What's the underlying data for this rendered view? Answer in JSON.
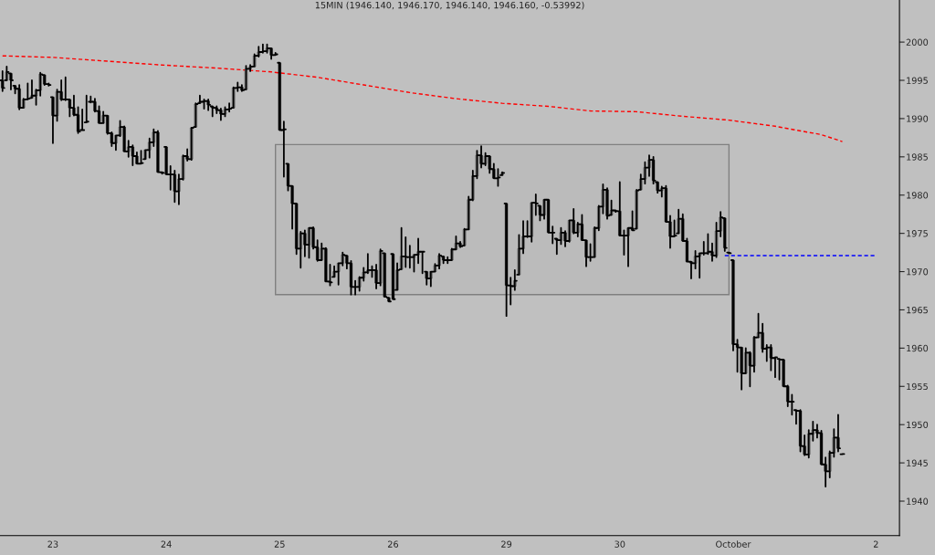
{
  "chart_data": {
    "type": "candlestick",
    "title": "15MIN (1946.140, 1946.170, 1946.140, 1946.160, -0.53992)",
    "color": "#000000",
    "categories": [
      null,
      null,
      null,
      null,
      null,
      null,
      null,
      null,
      null,
      null,
      null,
      null,
      "23",
      null,
      null,
      null,
      null,
      null,
      null,
      null,
      null,
      null,
      null,
      null,
      null,
      null,
      null,
      null,
      null,
      null,
      null,
      null,
      null,
      null,
      null,
      null,
      null,
      null,
      null,
      "24",
      null,
      null,
      null,
      null,
      null,
      null,
      null,
      null,
      null,
      null,
      null,
      null,
      null,
      null,
      null,
      null,
      null,
      null,
      null,
      null,
      null,
      null,
      null,
      null,
      null,
      null,
      "25",
      null,
      null,
      null,
      null,
      null,
      null,
      null,
      null,
      null,
      null,
      null,
      null,
      null,
      null,
      null,
      null,
      null,
      null,
      null,
      null,
      null,
      null,
      null,
      null,
      null,
      null,
      "26",
      null,
      null,
      null,
      null,
      null,
      null,
      null,
      null,
      null,
      null,
      null,
      null,
      null,
      null,
      null,
      null,
      null,
      null,
      null,
      null,
      null,
      null,
      null,
      null,
      null,
      null,
      "29",
      null,
      null,
      null,
      null,
      null,
      null,
      null,
      null,
      null,
      null,
      null,
      null,
      null,
      null,
      null,
      null,
      null,
      null,
      null,
      null,
      null,
      null,
      null,
      null,
      null,
      null,
      "30",
      null,
      null,
      null,
      null,
      null,
      null,
      null,
      null,
      null,
      null,
      null,
      null,
      null,
      null,
      null,
      null,
      null,
      null,
      null,
      null,
      null,
      null,
      null,
      null,
      null,
      null,
      "October",
      null,
      null,
      null,
      null,
      null,
      null,
      null,
      null,
      null,
      null,
      null,
      null,
      null,
      null,
      null,
      null,
      null,
      null,
      null,
      null,
      null,
      null,
      null,
      null,
      null,
      null,
      null,
      null,
      null,
      null,
      null,
      null,
      null,
      "2"
    ],
    "ohlc": [
      [
        1995.0,
        1996.2,
        1993.6,
        1994.0
      ],
      [
        1995.0,
        1996.8,
        1995.0,
        1996.1
      ],
      [
        1995.9,
        1995.9,
        1993.8,
        1995.0
      ],
      [
        1994.3,
        1994.3,
        1993.3,
        1993.9
      ],
      [
        1993.9,
        1994.4,
        1991.2,
        1991.4
      ],
      [
        1991.4,
        1992.6,
        1991.4,
        1992.5
      ],
      [
        1992.5,
        1994.6,
        1992.5,
        1992.6
      ],
      [
        1992.7,
        1995.0,
        1992.7,
        1993.0
      ],
      [
        1993.0,
        1993.8,
        1991.8,
        1993.7
      ],
      [
        1993.7,
        1996.0,
        1993.0,
        1995.8
      ],
      [
        1995.7,
        1995.7,
        1994.4,
        1994.5
      ],
      [
        1994.5,
        1994.6,
        1994.3,
        1994.4
      ],
      [
        1992.8,
        1992.8,
        1986.8,
        1990.4
      ],
      [
        1990.4,
        1993.8,
        1989.7,
        1993.5
      ],
      [
        1993.5,
        1995.0,
        1992.4,
        1992.5
      ],
      [
        1992.5,
        1995.4,
        1992.4,
        1992.5
      ],
      [
        1992.5,
        1992.5,
        1990.3,
        1991.4
      ],
      [
        1991.4,
        1993.0,
        1990.4,
        1990.5
      ],
      [
        1990.5,
        1991.5,
        1988.1,
        1988.3
      ],
      [
        1988.5,
        1991.2,
        1988.5,
        1988.5
      ],
      [
        1989.5,
        1993.0,
        1989.5,
        1989.6
      ],
      [
        1992.2,
        1992.9,
        1992.1,
        1992.2
      ],
      [
        1992.2,
        1992.6,
        1990.9,
        1991.0
      ],
      [
        1991.0,
        1991.6,
        1989.4,
        1989.4
      ],
      [
        1989.4,
        1990.9,
        1989.4,
        1990.4
      ],
      [
        1990.4,
        1990.4,
        1988.0,
        1988.1
      ],
      [
        1988.1,
        1988.2,
        1986.4,
        1986.8
      ],
      [
        1986.8,
        1987.8,
        1985.9,
        1987.8
      ],
      [
        1987.8,
        1989.7,
        1987.7,
        1988.9
      ],
      [
        1988.9,
        1989.0,
        1985.7,
        1985.7
      ],
      [
        1985.7,
        1987.1,
        1985.0,
        1986.3
      ],
      [
        1986.3,
        1986.5,
        1983.9,
        1985.1
      ],
      [
        1985.1,
        1985.6,
        1984.1,
        1984.1
      ],
      [
        1984.1,
        1985.8,
        1984.1,
        1984.2
      ],
      [
        1984.7,
        1985.9,
        1984.7,
        1985.9
      ],
      [
        1985.9,
        1987.4,
        1984.9,
        1986.9
      ],
      [
        1986.9,
        1988.6,
        1986.4,
        1988.2
      ],
      [
        1988.2,
        1988.4,
        1983.0,
        1983.0
      ],
      [
        1983.0,
        1983.0,
        1982.8,
        1982.9
      ],
      [
        1986.3,
        1986.3,
        1982.7,
        1982.7
      ],
      [
        1982.7,
        1983.8,
        1980.7,
        1982.7
      ],
      [
        1982.7,
        1983.2,
        1979.1,
        1980.5
      ],
      [
        1980.5,
        1982.7,
        1978.8,
        1982.1
      ],
      [
        1982.1,
        1985.2,
        1982.0,
        1985.1
      ],
      [
        1985.1,
        1986.0,
        1984.5,
        1984.7
      ],
      [
        1984.7,
        1988.8,
        1984.6,
        1988.8
      ],
      [
        1988.9,
        1992.0,
        1988.9,
        1991.9
      ],
      [
        1992.0,
        1993.0,
        1992.0,
        1992.2
      ],
      [
        1992.2,
        1992.5,
        1991.3,
        1992.3
      ],
      [
        1992.3,
        1992.5,
        1991.1,
        1991.8
      ],
      [
        1991.6,
        1991.6,
        1990.3,
        1991.4
      ],
      [
        1991.4,
        1991.6,
        1990.7,
        1991.1
      ],
      [
        1991.1,
        1991.3,
        1989.8,
        1990.6
      ],
      [
        1990.6,
        1991.5,
        1990.3,
        1991.2
      ],
      [
        1991.2,
        1992.0,
        1990.9,
        1991.3
      ],
      [
        1991.4,
        1994.1,
        1991.4,
        1994.0
      ],
      [
        1994.0,
        1994.7,
        1993.6,
        1994.1
      ],
      [
        1994.1,
        1994.4,
        1993.6,
        1993.7
      ],
      [
        1993.8,
        1996.9,
        1993.8,
        1996.5
      ],
      [
        1996.5,
        1997.0,
        1996.2,
        1996.8
      ],
      [
        1996.8,
        1998.4,
        1996.8,
        1998.2
      ],
      [
        1998.2,
        1999.4,
        1998.1,
        1998.7
      ],
      [
        1998.7,
        1999.7,
        1998.6,
        1998.8
      ],
      [
        1998.8,
        1999.7,
        1998.6,
        1999.2
      ],
      [
        1999.2,
        1999.2,
        1997.8,
        1998.3
      ],
      [
        1998.3,
        1998.6,
        1998.3,
        1998.4
      ],
      [
        1997.3,
        1997.3,
        1988.5,
        1988.5
      ],
      [
        1988.5,
        1989.6,
        1982.4,
        1988.6
      ],
      [
        1984.1,
        1984.1,
        1980.6,
        1981.2
      ],
      [
        1981.2,
        1981.2,
        1975.6,
        1978.9
      ],
      [
        1978.9,
        1978.9,
        1972.3,
        1973.0
      ],
      [
        1973.0,
        1975.2,
        1970.5,
        1975.0
      ],
      [
        1975.0,
        1975.4,
        1972.0,
        1973.5
      ],
      [
        1973.5,
        1975.7,
        1971.8,
        1975.7
      ],
      [
        1975.7,
        1975.8,
        1973.0,
        1973.2
      ],
      [
        1973.2,
        1974.1,
        1971.4,
        1971.5
      ],
      [
        1971.5,
        1973.7,
        1971.5,
        1973.0
      ],
      [
        1973.0,
        1973.1,
        1968.7,
        1968.7
      ],
      [
        1968.7,
        1970.9,
        1968.2,
        1968.6
      ],
      [
        1969.3,
        1970.7,
        1969.3,
        1970.0
      ],
      [
        1970.0,
        1971.1,
        1968.3,
        1971.1
      ],
      [
        1971.1,
        1972.5,
        1970.8,
        1972.2
      ],
      [
        1972.1,
        1972.1,
        1970.4,
        1971.1
      ],
      [
        1971.1,
        1971.4,
        1967.0,
        1968.0
      ],
      [
        1968.0,
        1968.8,
        1967.0,
        1968.0
      ],
      [
        1968.0,
        1969.3,
        1967.5,
        1969.2
      ],
      [
        1969.2,
        1970.5,
        1968.8,
        1969.9
      ],
      [
        1969.9,
        1972.3,
        1969.8,
        1970.2
      ],
      [
        1970.2,
        1970.7,
        1969.3,
        1970.2
      ],
      [
        1970.2,
        1970.9,
        1967.8,
        1968.5
      ],
      [
        1968.5,
        1972.9,
        1968.2,
        1972.7
      ],
      [
        1972.4,
        1972.4,
        1966.7,
        1966.7
      ],
      [
        1966.6,
        1966.6,
        1966.1,
        1966.1
      ],
      [
        1972.3,
        1972.3,
        1966.4,
        1966.4
      ],
      [
        1967.6,
        1971.1,
        1967.6,
        1970.2
      ],
      [
        1970.3,
        1975.7,
        1970.3,
        1972.0
      ],
      [
        1972.0,
        1974.5,
        1970.6,
        1971.9
      ],
      [
        1971.9,
        1973.4,
        1970.5,
        1971.9
      ],
      [
        1971.9,
        1972.2,
        1970.0,
        1972.2
      ],
      [
        1972.2,
        1974.3,
        1971.1,
        1972.6
      ],
      [
        1972.6,
        1972.6,
        1969.8,
        1972.6
      ],
      [
        1970.0,
        1970.0,
        1968.3,
        1969.1
      ],
      [
        1969.1,
        1970.0,
        1968.1,
        1970.0
      ],
      [
        1970.0,
        1971.0,
        1970.0,
        1970.8
      ],
      [
        1970.8,
        1972.3,
        1970.4,
        1972.1
      ],
      [
        1972.0,
        1972.0,
        1971.1,
        1971.5
      ],
      [
        1971.5,
        1971.9,
        1971.1,
        1971.5
      ],
      [
        1971.5,
        1973.0,
        1971.5,
        1972.9
      ],
      [
        1972.9,
        1974.6,
        1972.9,
        1973.7
      ],
      [
        1973.7,
        1973.9,
        1973.2,
        1973.3
      ],
      [
        1973.4,
        1975.6,
        1973.4,
        1975.5
      ],
      [
        1975.5,
        1979.8,
        1975.5,
        1979.4
      ],
      [
        1979.4,
        1983.2,
        1979.3,
        1982.5
      ],
      [
        1982.5,
        1985.8,
        1982.2,
        1985.2
      ],
      [
        1985.2,
        1986.4,
        1983.6,
        1984.1
      ],
      [
        1984.1,
        1985.5,
        1983.9,
        1985.1
      ],
      [
        1985.1,
        1985.1,
        1982.9,
        1983.4
      ],
      [
        1983.4,
        1984.1,
        1982.2,
        1982.2
      ],
      [
        1982.2,
        1983.4,
        1981.2,
        1982.3
      ],
      [
        1982.6,
        1983.0,
        1982.6,
        1982.9
      ],
      [
        1978.9,
        1978.9,
        1964.2,
        1968.2
      ],
      [
        1968.2,
        1969.2,
        1965.7,
        1968.1
      ],
      [
        1968.1,
        1970.2,
        1967.6,
        1968.8
      ],
      [
        1969.6,
        1974.8,
        1969.6,
        1973.0
      ],
      [
        1973.0,
        1976.6,
        1972.4,
        1974.6
      ],
      [
        1974.6,
        1976.6,
        1974.5,
        1974.6
      ],
      [
        1974.6,
        1979.0,
        1973.9,
        1979.0
      ],
      [
        1979.0,
        1980.1,
        1977.4,
        1978.9
      ],
      [
        1978.6,
        1978.6,
        1976.7,
        1977.4
      ],
      [
        1977.4,
        1979.4,
        1976.9,
        1979.4
      ],
      [
        1979.4,
        1979.4,
        1975.1,
        1975.1
      ],
      [
        1975.1,
        1975.9,
        1973.7,
        1975.1
      ],
      [
        1974.3,
        1974.3,
        1972.3,
        1974.1
      ],
      [
        1974.1,
        1975.7,
        1973.6,
        1975.1
      ],
      [
        1975.1,
        1975.3,
        1973.3,
        1974.0
      ],
      [
        1974.0,
        1976.7,
        1973.9,
        1976.7
      ],
      [
        1976.7,
        1978.2,
        1975.0,
        1975.1
      ],
      [
        1975.1,
        1976.4,
        1974.6,
        1976.2
      ],
      [
        1976.2,
        1977.4,
        1974.1,
        1974.1
      ],
      [
        1974.1,
        1974.1,
        1970.7,
        1971.9
      ],
      [
        1971.9,
        1973.6,
        1971.4,
        1971.9
      ],
      [
        1971.9,
        1975.8,
        1971.9,
        1975.7
      ],
      [
        1975.7,
        1978.6,
        1975.4,
        1978.5
      ],
      [
        1978.5,
        1981.4,
        1977.6,
        1980.7
      ],
      [
        1980.7,
        1980.9,
        1976.9,
        1977.3
      ],
      [
        1977.4,
        1979.3,
        1977.4,
        1978.0
      ],
      [
        1978.0,
        1978.0,
        1977.8,
        1977.9
      ],
      [
        1977.9,
        1981.7,
        1974.7,
        1974.7
      ],
      [
        1974.7,
        1975.4,
        1972.2,
        1974.7
      ],
      [
        1974.7,
        1975.7,
        1970.7,
        1975.7
      ],
      [
        1975.7,
        1977.9,
        1975.4,
        1975.4
      ],
      [
        1975.6,
        1980.7,
        1975.6,
        1980.6
      ],
      [
        1980.7,
        1982.7,
        1980.7,
        1982.1
      ],
      [
        1982.1,
        1984.3,
        1981.5,
        1983.6
      ],
      [
        1983.6,
        1985.2,
        1982.5,
        1984.6
      ],
      [
        1984.6,
        1985.0,
        1981.5,
        1981.9
      ],
      [
        1981.7,
        1981.7,
        1980.3,
        1980.6
      ],
      [
        1980.6,
        1981.1,
        1979.8,
        1980.9
      ],
      [
        1980.9,
        1981.2,
        1976.5,
        1976.5
      ],
      [
        1976.5,
        1977.3,
        1973.1,
        1974.6
      ],
      [
        1974.6,
        1976.7,
        1974.6,
        1974.7
      ],
      [
        1975.0,
        1978.1,
        1975.0,
        1976.9
      ],
      [
        1976.9,
        1977.5,
        1974.0,
        1974.0
      ],
      [
        1974.0,
        1974.3,
        1971.3,
        1971.3
      ],
      [
        1971.3,
        1971.3,
        1969.1,
        1971.1
      ],
      [
        1971.1,
        1972.7,
        1970.4,
        1972.0
      ],
      [
        1972.0,
        1972.4,
        1969.2,
        1972.4
      ],
      [
        1972.4,
        1973.9,
        1972.2,
        1972.4
      ],
      [
        1972.4,
        1974.9,
        1972.3,
        1972.6
      ],
      [
        1972.6,
        1973.7,
        1971.4,
        1972.1
      ],
      [
        1972.1,
        1976.4,
        1971.9,
        1975.3
      ],
      [
        1975.3,
        1977.8,
        1974.6,
        1977.1
      ],
      [
        1977.0,
        1977.0,
        1972.7,
        1973.1
      ],
      [
        1972.5,
        1972.5,
        1972.4,
        1972.4
      ],
      [
        1971.5,
        1971.5,
        1959.7,
        1960.5
      ],
      [
        1960.5,
        1961.1,
        1956.9,
        1960.1
      ],
      [
        1960.1,
        1960.1,
        1954.6,
        1956.7
      ],
      [
        1956.7,
        1960.0,
        1956.7,
        1959.4
      ],
      [
        1959.4,
        1959.5,
        1955.0,
        1957.7
      ],
      [
        1957.7,
        1961.5,
        1956.9,
        1961.4
      ],
      [
        1961.4,
        1964.5,
        1961.4,
        1962.0
      ],
      [
        1962.0,
        1963.2,
        1959.5,
        1959.9
      ],
      [
        1959.9,
        1960.4,
        1958.3,
        1960.1
      ],
      [
        1960.1,
        1960.4,
        1957.1,
        1958.7
      ],
      [
        1958.7,
        1958.8,
        1956.2,
        1958.8
      ],
      [
        1958.6,
        1958.6,
        1955.9,
        1958.5
      ],
      [
        1958.5,
        1958.5,
        1955.0,
        1955.0
      ],
      [
        1955.0,
        1955.1,
        1952.4,
        1953.0
      ],
      [
        1953.0,
        1953.9,
        1951.3,
        1953.0
      ],
      [
        1951.9,
        1951.9,
        1950.1,
        1951.8
      ],
      [
        1951.8,
        1951.9,
        1946.5,
        1947.2
      ],
      [
        1947.2,
        1948.6,
        1946.0,
        1946.1
      ],
      [
        1946.1,
        1949.3,
        1945.7,
        1948.8
      ],
      [
        1948.8,
        1950.4,
        1947.9,
        1949.3
      ],
      [
        1949.3,
        1950.0,
        1948.3,
        1948.9
      ],
      [
        1948.9,
        1949.2,
        1944.8,
        1944.8
      ],
      [
        1944.8,
        1945.7,
        1941.9,
        1943.9
      ],
      [
        1943.9,
        1946.5,
        1943.1,
        1946.3
      ],
      [
        1946.3,
        1949.4,
        1945.8,
        1948.3
      ],
      [
        1948.3,
        1951.3,
        1946.5,
        1946.9
      ],
      [
        1946.14,
        1946.17,
        1946.14,
        1946.16
      ],
      null,
      null,
      null,
      null,
      null,
      null,
      null,
      null
    ],
    "series": [
      {
        "type": "line",
        "color": "#ff0000",
        "line_style": "dashed",
        "values": [
          1998.2,
          null,
          null,
          null,
          null,
          null,
          null,
          null,
          null,
          null,
          null,
          null,
          1998.0,
          null,
          null,
          null,
          null,
          null,
          null,
          null,
          null,
          null,
          null,
          null,
          null,
          1997.5,
          null,
          null,
          null,
          null,
          null,
          null,
          null,
          null,
          null,
          null,
          null,
          null,
          1997.0,
          null,
          null,
          null,
          null,
          null,
          null,
          null,
          null,
          null,
          null,
          null,
          null,
          1996.6,
          null,
          null,
          null,
          null,
          null,
          null,
          null,
          null,
          null,
          null,
          null,
          null,
          1996.1,
          null,
          null,
          null,
          null,
          null,
          null,
          null,
          null,
          null,
          null,
          1995.4,
          null,
          null,
          null,
          null,
          null,
          null,
          null,
          null,
          null,
          null,
          1994.4,
          null,
          null,
          null,
          null,
          null,
          null,
          null,
          null,
          null,
          null,
          1993.4,
          null,
          null,
          null,
          null,
          null,
          null,
          null,
          null,
          null,
          null,
          1992.6,
          null,
          null,
          null,
          null,
          null,
          null,
          null,
          null,
          null,
          null,
          1992.0,
          null,
          null,
          null,
          null,
          null,
          null,
          null,
          null,
          null,
          null,
          1991.6,
          null,
          null,
          null,
          null,
          null,
          null,
          null,
          null,
          null,
          1991.0,
          null,
          null,
          null,
          null,
          null,
          null,
          null,
          null,
          null,
          null,
          1990.9,
          null,
          null,
          null,
          null,
          null,
          null,
          null,
          null,
          null,
          null,
          1990.3,
          null,
          null,
          null,
          null,
          null,
          null,
          null,
          null,
          null,
          null,
          1989.8,
          null,
          null,
          null,
          null,
          null,
          null,
          null,
          null,
          null,
          null,
          1989.0,
          null,
          null,
          null,
          null,
          null,
          null,
          null,
          null,
          null,
          null,
          1987.9,
          null,
          null,
          null,
          null,
          1987.0,
          null,
          null,
          null,
          null,
          null,
          null,
          null,
          null
        ]
      },
      {
        "type": "line",
        "color": "#0000ff",
        "line_style": "dashed",
        "values": [
          null,
          null,
          null,
          null,
          null,
          null,
          null,
          null,
          null,
          null,
          null,
          null,
          null,
          null,
          null,
          null,
          null,
          null,
          null,
          null,
          null,
          null,
          null,
          null,
          null,
          null,
          null,
          null,
          null,
          null,
          null,
          null,
          null,
          null,
          null,
          null,
          null,
          null,
          null,
          null,
          null,
          null,
          null,
          null,
          null,
          null,
          null,
          null,
          null,
          null,
          null,
          null,
          null,
          null,
          null,
          null,
          null,
          null,
          null,
          null,
          null,
          null,
          null,
          null,
          null,
          null,
          null,
          null,
          null,
          null,
          null,
          null,
          null,
          null,
          null,
          null,
          null,
          null,
          null,
          null,
          null,
          null,
          null,
          null,
          null,
          null,
          null,
          null,
          null,
          null,
          null,
          null,
          null,
          null,
          null,
          null,
          null,
          null,
          null,
          null,
          null,
          null,
          null,
          null,
          null,
          null,
          null,
          null,
          null,
          null,
          null,
          null,
          null,
          null,
          null,
          null,
          null,
          null,
          null,
          null,
          null,
          null,
          null,
          null,
          null,
          null,
          null,
          null,
          null,
          null,
          null,
          null,
          null,
          null,
          null,
          null,
          null,
          null,
          null,
          null,
          null,
          null,
          null,
          null,
          null,
          null,
          null,
          null,
          null,
          null,
          null,
          null,
          null,
          null,
          null,
          null,
          null,
          null,
          null,
          null,
          null,
          null,
          null,
          null,
          null,
          null,
          null,
          null,
          null,
          null,
          null,
          null,
          1972.1,
          null,
          null,
          null,
          null,
          null,
          null,
          null,
          null,
          null,
          null,
          null,
          null,
          null,
          null,
          null,
          null,
          null,
          null,
          null,
          null,
          null,
          null,
          null,
          null,
          null,
          null,
          null,
          null,
          null,
          null,
          null,
          null,
          null,
          null,
          null,
          1972.1
        ]
      }
    ],
    "bands": [
      {
        "axis": "y",
        "from": 1967.0,
        "to": 1986.6,
        "color": "#808080"
      }
    ],
    "ylim": [
      1935.5,
      2005.5
    ],
    "yticks": [
      1940,
      1945,
      1950,
      1955,
      1960,
      1965,
      1970,
      1975,
      1980,
      1985,
      1990,
      1995,
      2000
    ],
    "grid": false,
    "legend": false
  }
}
